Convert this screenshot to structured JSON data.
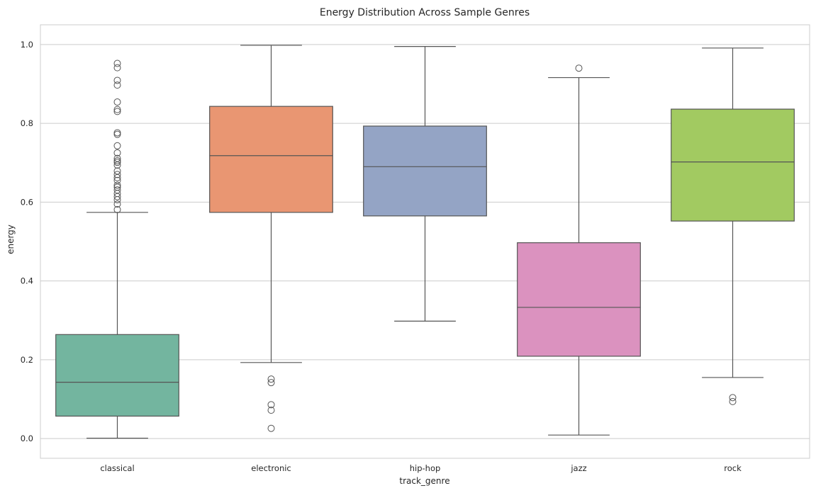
{
  "chart_data": {
    "type": "box",
    "title": "Energy Distribution Across Sample Genres",
    "xlabel": "track_genre",
    "ylabel": "energy",
    "ylim": [
      -0.05,
      1.05
    ],
    "yticks": [
      "0.0",
      "0.2",
      "0.4",
      "0.6",
      "0.8",
      "1.0"
    ],
    "grid": true,
    "categories": [
      "classical",
      "electronic",
      "hip-hop",
      "jazz",
      "rock"
    ],
    "colors": [
      "#73b59f",
      "#e99672",
      "#94a4c5",
      "#db92bf",
      "#a2ca61"
    ],
    "boxes": [
      {
        "category": "classical",
        "whisker_low": 0.001,
        "q1": 0.057,
        "median": 0.143,
        "q3": 0.264,
        "whisker_high": 0.574,
        "outliers": [
          0.952,
          0.941,
          0.909,
          0.897,
          0.854,
          0.835,
          0.83,
          0.776,
          0.772,
          0.743,
          0.725,
          0.711,
          0.705,
          0.701,
          0.694,
          0.679,
          0.67,
          0.662,
          0.655,
          0.643,
          0.638,
          0.631,
          0.622,
          0.614,
          0.606,
          0.595,
          0.581
        ]
      },
      {
        "category": "electronic",
        "whisker_low": 0.193,
        "q1": 0.574,
        "median": 0.718,
        "q3": 0.843,
        "whisker_high": 0.998,
        "outliers": [
          0.151,
          0.142,
          0.086,
          0.072,
          0.026
        ]
      },
      {
        "category": "hip-hop",
        "whisker_low": 0.298,
        "q1": 0.565,
        "median": 0.69,
        "q3": 0.793,
        "whisker_high": 0.995,
        "outliers": []
      },
      {
        "category": "jazz",
        "whisker_low": 0.009,
        "q1": 0.209,
        "median": 0.333,
        "q3": 0.497,
        "whisker_high": 0.916,
        "outliers": [
          0.94
        ]
      },
      {
        "category": "rock",
        "whisker_low": 0.155,
        "q1": 0.552,
        "median": 0.702,
        "q3": 0.836,
        "whisker_high": 0.991,
        "outliers": [
          0.104,
          0.094
        ]
      }
    ]
  }
}
